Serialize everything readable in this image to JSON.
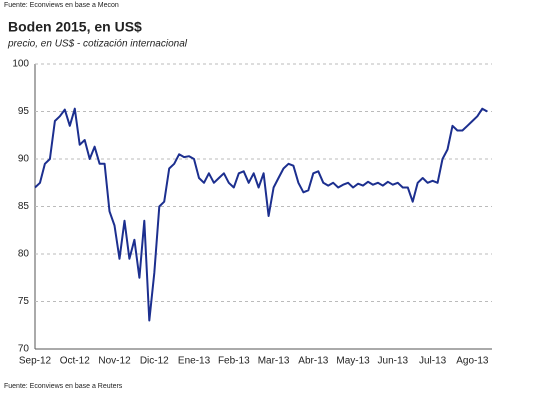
{
  "source_top": "Fuente: Econviews en base a Mecon",
  "chart_data": {
    "type": "line",
    "title": "Boden 2015, en US$",
    "subtitle": "precio, en US$ - cotización internacional",
    "source": "Fuente: Econviews en base a Reuters",
    "categories": [
      "Sep-12",
      null,
      null,
      null,
      null,
      null,
      null,
      null,
      "Oct-12",
      null,
      null,
      null,
      null,
      null,
      null,
      null,
      "Nov-12",
      null,
      null,
      null,
      null,
      null,
      null,
      null,
      "Dic-12",
      null,
      null,
      null,
      null,
      null,
      null,
      null,
      "Ene-13",
      null,
      null,
      null,
      null,
      null,
      null,
      null,
      "Feb-13",
      null,
      null,
      null,
      null,
      null,
      null,
      null,
      "Mar-13",
      null,
      null,
      null,
      null,
      null,
      null,
      null,
      "Abr-13",
      null,
      null,
      null,
      null,
      null,
      null,
      null,
      "May-13",
      null,
      null,
      null,
      null,
      null,
      null,
      null,
      "Jun-13",
      null,
      null,
      null,
      null,
      null,
      null,
      null,
      "Jul-13",
      null,
      null,
      null,
      null,
      null,
      null,
      null,
      "Ago-13",
      null,
      null,
      null
    ],
    "series": [
      {
        "color": "#1c2f8f",
        "values": [
          87,
          87.5,
          89.5,
          90,
          94,
          94.5,
          95.2,
          93.5,
          95.3,
          91.5,
          92,
          90,
          91.3,
          89.5,
          89.5,
          84.5,
          83,
          79.5,
          83.5,
          79.5,
          81.5,
          77.5,
          83.5,
          73,
          78,
          85,
          85.5,
          89,
          89.5,
          90.5,
          90.2,
          90.3,
          90,
          88,
          87.5,
          88.5,
          87.5,
          88,
          88.5,
          87.5,
          87,
          88.5,
          88.7,
          87.5,
          88.5,
          87,
          88.5,
          84,
          87,
          88,
          89,
          89.5,
          89.3,
          87.5,
          86.5,
          86.7,
          88.5,
          88.7,
          87.5,
          87.2,
          87.5,
          87,
          87.3,
          87.5,
          87,
          87.4,
          87.2,
          87.6,
          87.3,
          87.5,
          87.2,
          87.6,
          87.3,
          87.5,
          87,
          87,
          85.5,
          87.5,
          88,
          87.5,
          87.7,
          87.5,
          90,
          91,
          93.5,
          93,
          93,
          93.5,
          94,
          94.5,
          95.3,
          95
        ]
      }
    ],
    "ylim": [
      70,
      100
    ],
    "yticks": [
      70,
      75,
      80,
      85,
      90,
      95,
      100
    ],
    "grid": true
  }
}
